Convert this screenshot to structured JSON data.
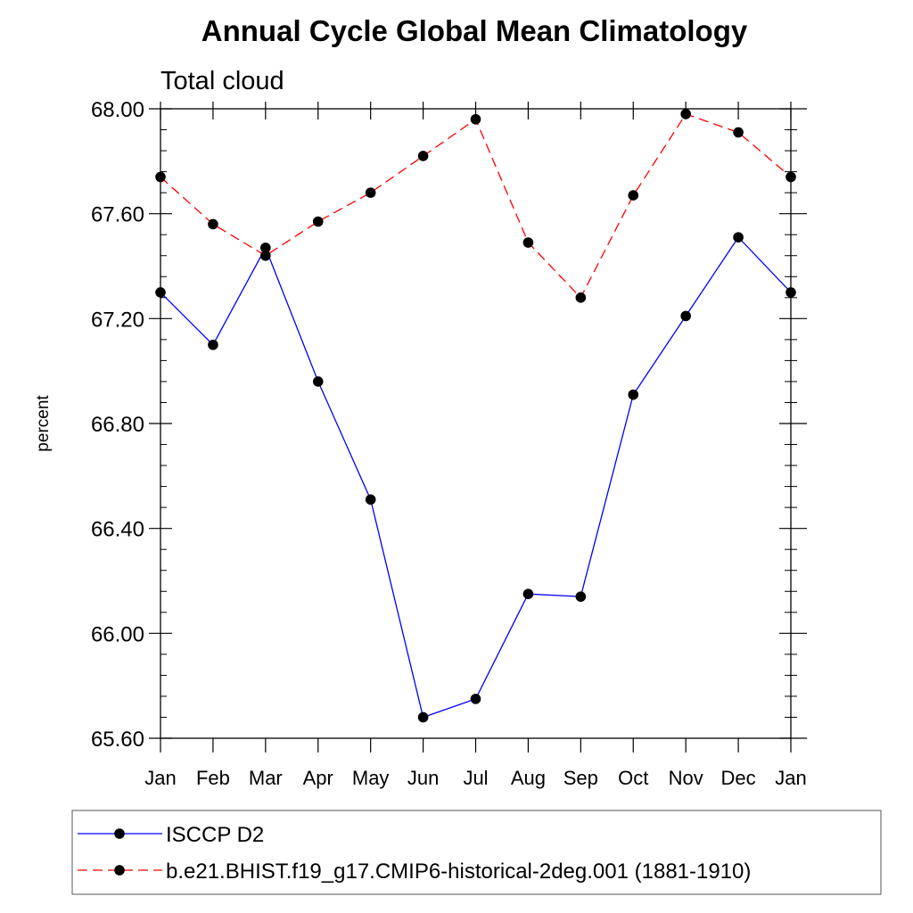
{
  "chart_data": {
    "type": "line",
    "title": "Annual Cycle Global Mean Climatology",
    "subtitle": "Total cloud",
    "xlabel": "",
    "ylabel": "percent",
    "categories": [
      "Jan",
      "Feb",
      "Mar",
      "Apr",
      "May",
      "Jun",
      "Jul",
      "Aug",
      "Sep",
      "Oct",
      "Nov",
      "Dec",
      "Jan"
    ],
    "ylim": [
      65.6,
      68.0
    ],
    "yticks": [
      "65.60",
      "66.00",
      "66.40",
      "66.80",
      "67.20",
      "67.60",
      "68.00"
    ],
    "yticks_values": [
      65.6,
      66.0,
      66.4,
      66.8,
      67.2,
      67.6,
      68.0
    ],
    "legend_position": "bottom",
    "series": [
      {
        "name": "ISCCP D2",
        "values": [
          67.3,
          67.1,
          67.47,
          66.96,
          66.51,
          65.68,
          65.75,
          66.15,
          66.14,
          66.91,
          67.21,
          67.51,
          67.3
        ],
        "color": "#0000ff",
        "style": "solid"
      },
      {
        "name": "b.e21.BHIST.f19_g17.CMIP6-historical-2deg.001 (1881-1910)",
        "values": [
          67.74,
          67.56,
          67.44,
          67.57,
          67.68,
          67.82,
          67.96,
          67.49,
          67.28,
          67.67,
          67.98,
          67.91,
          67.74
        ],
        "color": "#ff0000",
        "style": "dashed"
      }
    ]
  }
}
